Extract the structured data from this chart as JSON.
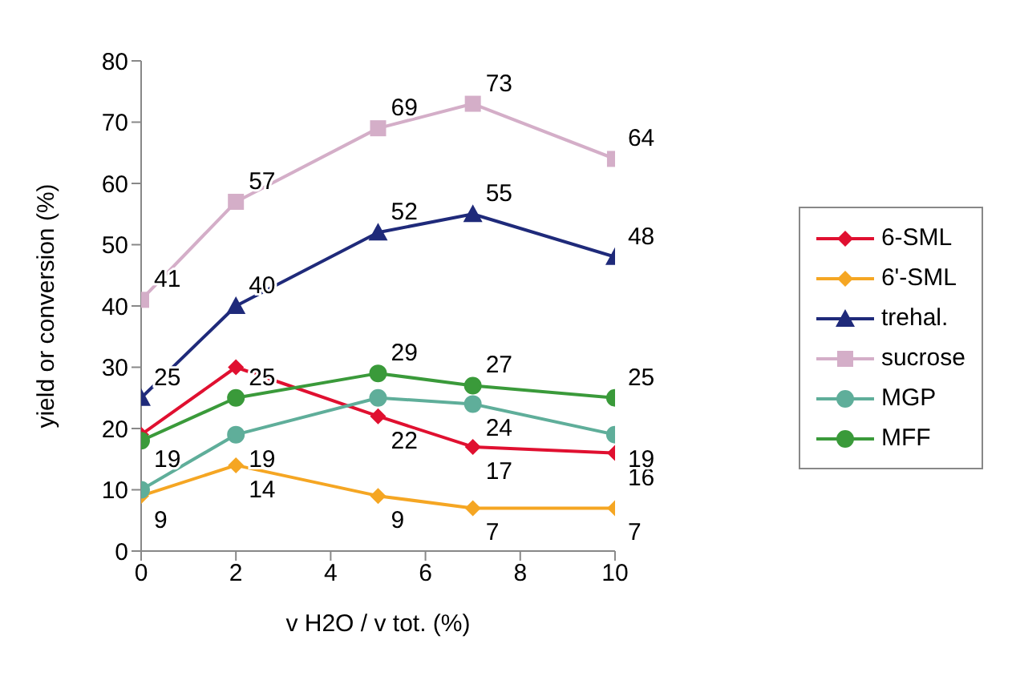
{
  "chart_data": {
    "type": "line",
    "xlabel": "v H2O / v tot. (%)",
    "ylabel": "yield or conversion (%)",
    "x": [
      0,
      2,
      5,
      7,
      10
    ],
    "xlim": [
      0,
      10
    ],
    "xticks": [
      0,
      2,
      4,
      6,
      8,
      10
    ],
    "ylim": [
      0,
      80
    ],
    "yticks": [
      0,
      10,
      20,
      30,
      40,
      50,
      60,
      70,
      80
    ],
    "grid": false,
    "legend": "right",
    "series": [
      {
        "name": "6-SML",
        "color": "#e01030",
        "marker": "diamond",
        "values": [
          19,
          30,
          22,
          17,
          16
        ],
        "value_labels": [
          "19",
          null,
          "22",
          "17",
          "16"
        ]
      },
      {
        "name": "6'-SML",
        "color": "#f5a623",
        "marker": "diamond",
        "values": [
          9,
          14,
          9,
          7,
          7
        ],
        "value_labels": [
          "9",
          "14",
          "9",
          "7",
          "7"
        ]
      },
      {
        "name": "trehal.",
        "color": "#1f2a7a",
        "marker": "triangle",
        "values": [
          25,
          40,
          52,
          55,
          48
        ],
        "value_labels": [
          "25",
          "40",
          "52",
          "55",
          "48"
        ]
      },
      {
        "name": "sucrose",
        "color": "#d4aec8",
        "marker": "square",
        "values": [
          41,
          57,
          69,
          73,
          64
        ],
        "value_labels": [
          "41",
          "57",
          "69",
          "73",
          "64"
        ]
      },
      {
        "name": "MGP",
        "color": "#5fae9a",
        "marker": "circle",
        "values": [
          10,
          19,
          25,
          24,
          19
        ],
        "value_labels": [
          null,
          "19",
          null,
          "24",
          "19"
        ]
      },
      {
        "name": "MFF",
        "color": "#3a9a3a",
        "marker": "circle",
        "values": [
          18,
          25,
          29,
          27,
          25
        ],
        "value_labels": [
          null,
          "25",
          "29",
          "27",
          "25"
        ]
      }
    ]
  }
}
